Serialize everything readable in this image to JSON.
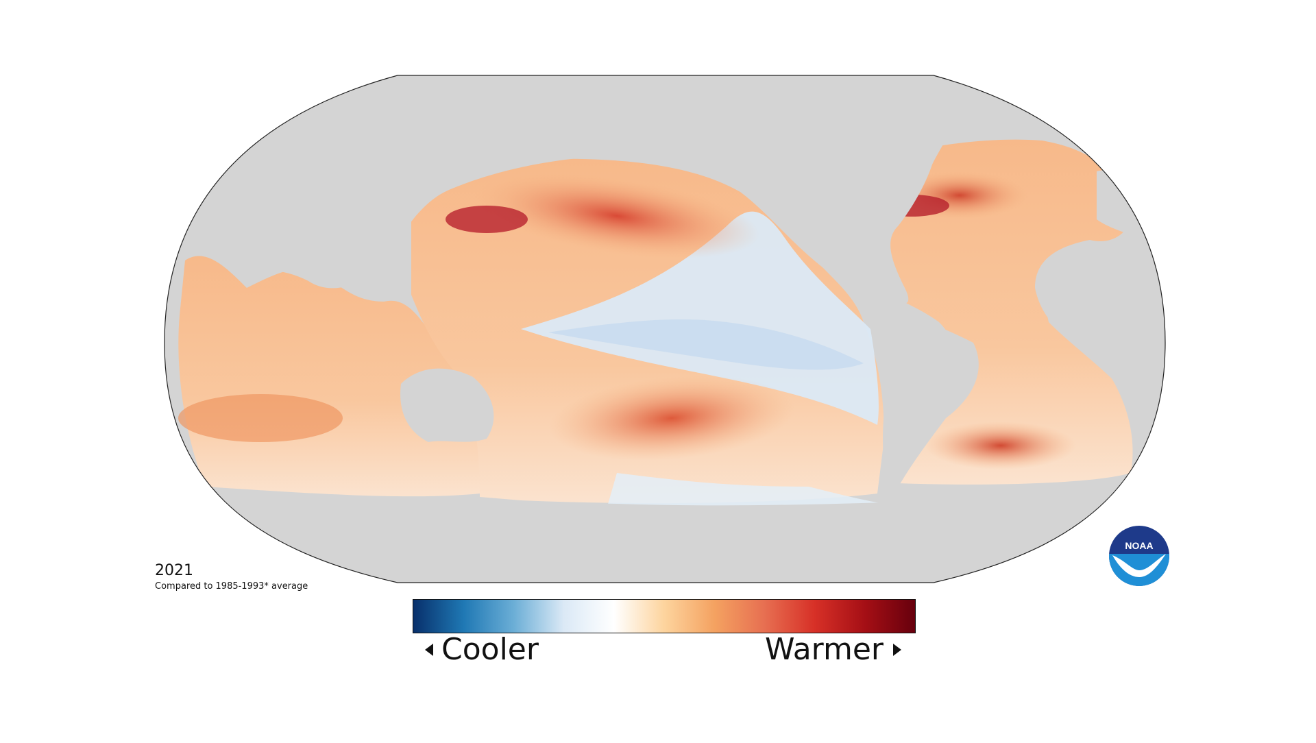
{
  "map": {
    "year": "2021",
    "baseline": "Compared to 1985-1993* average",
    "legend": {
      "low_label": "Cooler",
      "high_label": "Warmer",
      "colors": [
        "#08306b",
        "#1f78b4",
        "#6baed6",
        "#dbe9f6",
        "#ffffff",
        "#fdd49e",
        "#f4a261",
        "#e76f51",
        "#d73027",
        "#a50f15",
        "#67000d"
      ]
    },
    "land_color": "#d4d4d4",
    "logo_text": "NOAA"
  }
}
